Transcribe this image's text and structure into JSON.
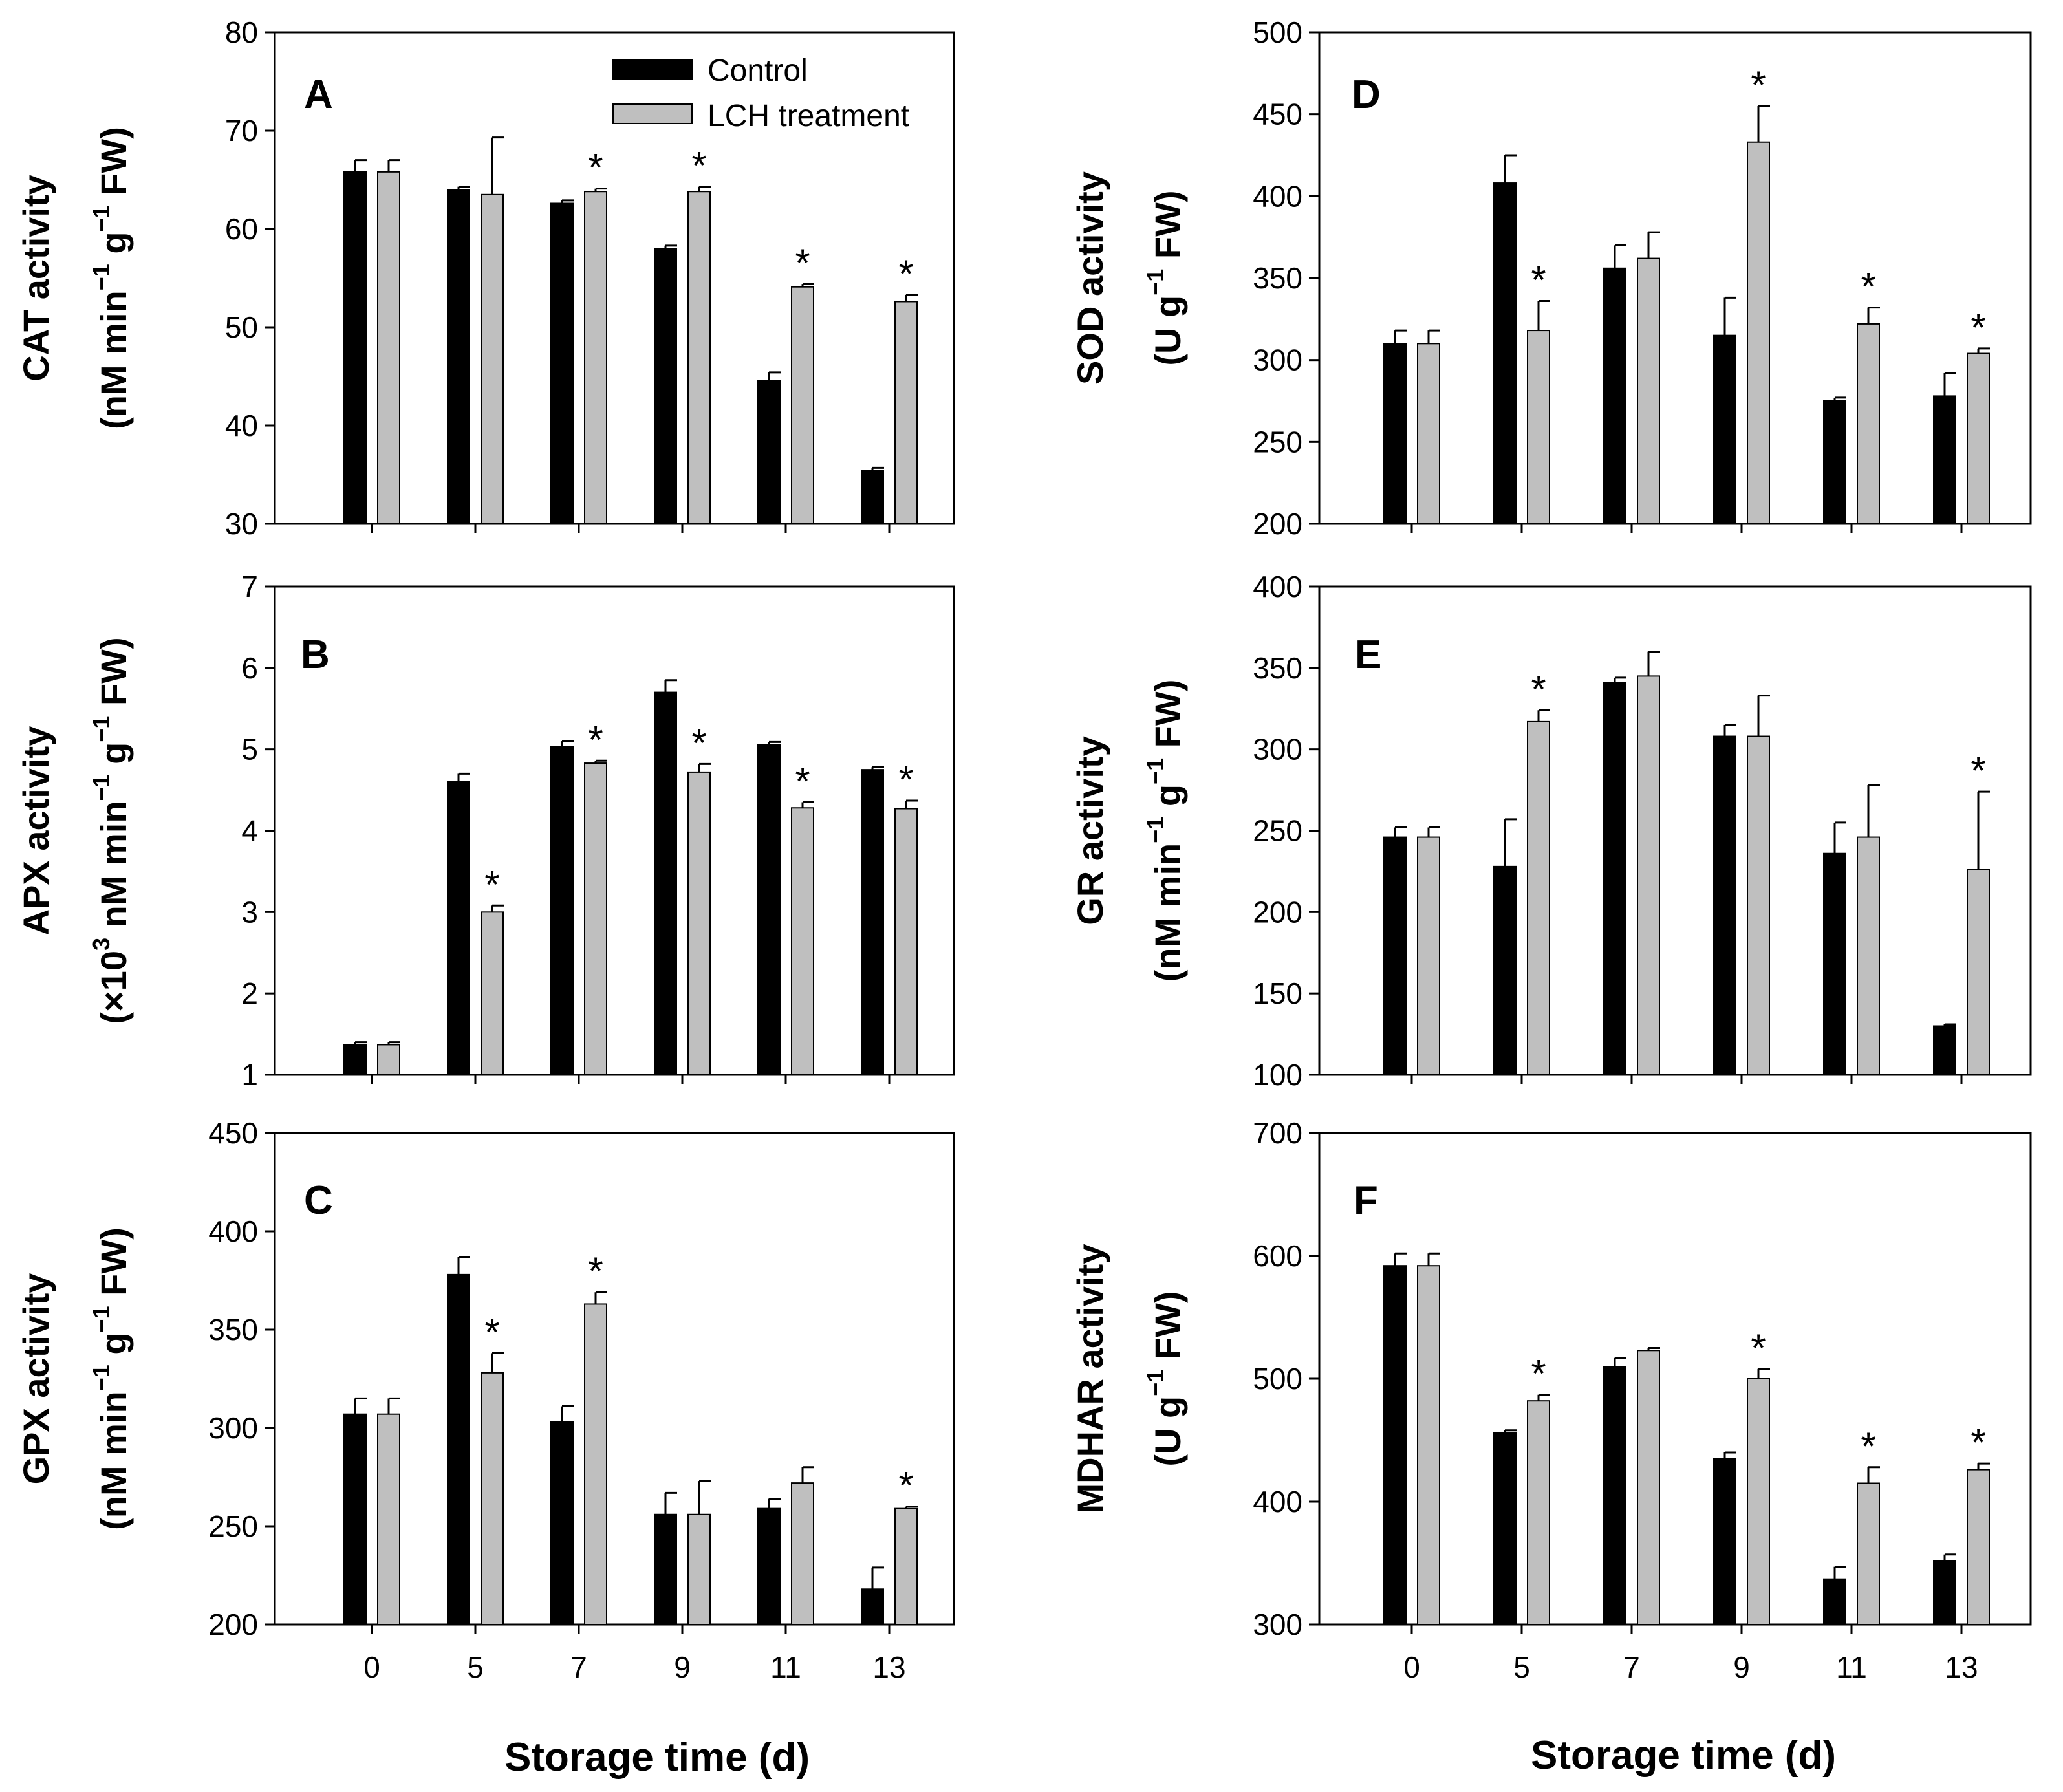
{
  "figure": {
    "xaxis_title": "Storage time (d)",
    "legend": {
      "control": "Control",
      "treatment": "LCH treatment"
    }
  },
  "colors": {
    "control": "#000000",
    "treatment": "#bfbfbf",
    "axis": "#000000"
  },
  "chart_data": [
    {
      "id": "A",
      "type": "bar",
      "letter": "A",
      "position": "left-top",
      "ylabel_line1": "CAT activity",
      "ylabel_line2": [
        "(nM min",
        "−1",
        " g",
        "−1",
        " FW)"
      ],
      "categories": [
        "0",
        "5",
        "7",
        "9",
        "11",
        "13"
      ],
      "ylim": [
        30,
        80
      ],
      "yticks": [
        30,
        40,
        50,
        60,
        70,
        80
      ],
      "show_legend": true,
      "show_xticks": false,
      "series": [
        {
          "name": "Control",
          "values": [
            65.8,
            64.0,
            62.6,
            58.0,
            44.6,
            35.4
          ],
          "errors": [
            1.2,
            0.3,
            0.3,
            0.3,
            0.8,
            0.3
          ]
        },
        {
          "name": "LCH treatment",
          "values": [
            65.8,
            63.5,
            63.8,
            63.8,
            54.1,
            52.6
          ],
          "errors": [
            1.2,
            5.8,
            0.3,
            0.5,
            0.3,
            0.7
          ]
        }
      ],
      "significant": [
        "",
        "",
        "*",
        "*",
        "*",
        "*"
      ]
    },
    {
      "id": "B",
      "type": "bar",
      "letter": "B",
      "position": "left-middle",
      "ylabel_line1": "APX activity",
      "ylabel_line2": [
        "(×10",
        "3",
        " nM min",
        "−1",
        " g",
        "−1",
        " FW)"
      ],
      "categories": [
        "0",
        "5",
        "7",
        "9",
        "11",
        "13"
      ],
      "ylim": [
        1,
        7
      ],
      "yticks": [
        1,
        2,
        3,
        4,
        5,
        6,
        7
      ],
      "show_legend": false,
      "show_xticks": false,
      "series": [
        {
          "name": "Control",
          "values": [
            1.37,
            4.6,
            5.03,
            5.7,
            5.06,
            4.75
          ],
          "errors": [
            0.03,
            0.1,
            0.07,
            0.15,
            0.03,
            0.03
          ]
        },
        {
          "name": "LCH treatment",
          "values": [
            1.37,
            3.0,
            4.83,
            4.72,
            4.28,
            4.27
          ],
          "errors": [
            0.03,
            0.08,
            0.03,
            0.1,
            0.07,
            0.1
          ]
        }
      ],
      "significant": [
        "",
        "*",
        "*",
        "*",
        "*",
        "*"
      ]
    },
    {
      "id": "C",
      "type": "bar",
      "letter": "C",
      "position": "left-bottom",
      "ylabel_line1": "GPX activity",
      "ylabel_line2": [
        "(nM min",
        "−1",
        " g",
        "−1",
        " FW)"
      ],
      "categories": [
        "0",
        "5",
        "7",
        "9",
        "11",
        "13"
      ],
      "ylim": [
        200,
        450
      ],
      "yticks": [
        200,
        250,
        300,
        350,
        400,
        450
      ],
      "show_legend": false,
      "show_xticks": true,
      "series": [
        {
          "name": "Control",
          "values": [
            307,
            378,
            303,
            256,
            259,
            218
          ],
          "errors": [
            8,
            9,
            8,
            11,
            5,
            11
          ]
        },
        {
          "name": "LCH treatment",
          "values": [
            307,
            328,
            363,
            256,
            272,
            259
          ],
          "errors": [
            8,
            10,
            6,
            17,
            8,
            1
          ]
        }
      ],
      "significant": [
        "",
        "*",
        "*",
        "",
        "",
        "*"
      ]
    },
    {
      "id": "D",
      "type": "bar",
      "letter": "D",
      "position": "right-top",
      "ylabel_line1": "SOD activity",
      "ylabel_line2": [
        "(U g",
        "−1",
        " FW)"
      ],
      "categories": [
        "0",
        "5",
        "7",
        "9",
        "11",
        "13"
      ],
      "ylim": [
        200,
        500
      ],
      "yticks": [
        200,
        250,
        300,
        350,
        400,
        450,
        500
      ],
      "show_legend": false,
      "show_xticks": false,
      "series": [
        {
          "name": "Control",
          "values": [
            310,
            408,
            356,
            315,
            275,
            278
          ],
          "errors": [
            8,
            17,
            14,
            23,
            2,
            14
          ]
        },
        {
          "name": "LCH treatment",
          "values": [
            310,
            318,
            362,
            433,
            322,
            304
          ],
          "errors": [
            8,
            18,
            16,
            22,
            10,
            3
          ]
        }
      ],
      "significant": [
        "",
        "*",
        "",
        "*",
        "*",
        "*"
      ]
    },
    {
      "id": "E",
      "type": "bar",
      "letter": "E",
      "position": "right-middle",
      "ylabel_line1": "GR activity",
      "ylabel_line2": [
        "(nM min",
        "−1",
        " g",
        "−1",
        " FW)"
      ],
      "categories": [
        "0",
        "5",
        "7",
        "9",
        "11",
        "13"
      ],
      "ylim": [
        100,
        400
      ],
      "yticks": [
        100,
        150,
        200,
        250,
        300,
        350,
        400
      ],
      "show_legend": false,
      "show_xticks": false,
      "series": [
        {
          "name": "Control",
          "values": [
            246,
            228,
            341,
            308,
            236,
            130
          ],
          "errors": [
            6,
            29,
            3,
            7,
            19,
            1
          ]
        },
        {
          "name": "LCH treatment",
          "values": [
            246,
            317,
            345,
            308,
            246,
            226
          ],
          "errors": [
            6,
            7,
            15,
            25,
            32,
            48
          ]
        }
      ],
      "significant": [
        "",
        "*",
        "",
        "",
        "",
        "*"
      ]
    },
    {
      "id": "F",
      "type": "bar",
      "letter": "F",
      "position": "right-bottom",
      "ylabel_line1": "MDHAR activity",
      "ylabel_line2": [
        "(U g",
        "−1",
        " FW)"
      ],
      "categories": [
        "0",
        "5",
        "7",
        "9",
        "11",
        "13"
      ],
      "ylim": [
        300,
        700
      ],
      "yticks": [
        300,
        400,
        500,
        600,
        700
      ],
      "show_legend": false,
      "show_xticks": true,
      "series": [
        {
          "name": "Control",
          "values": [
            592,
            456,
            510,
            435,
            337,
            352
          ],
          "errors": [
            10,
            2,
            7,
            5,
            10,
            5
          ]
        },
        {
          "name": "LCH treatment",
          "values": [
            592,
            482,
            523,
            500,
            415,
            426
          ],
          "errors": [
            10,
            5,
            2,
            8,
            13,
            5
          ]
        }
      ],
      "significant": [
        "",
        "*",
        "",
        "*",
        "*",
        "*"
      ]
    }
  ]
}
